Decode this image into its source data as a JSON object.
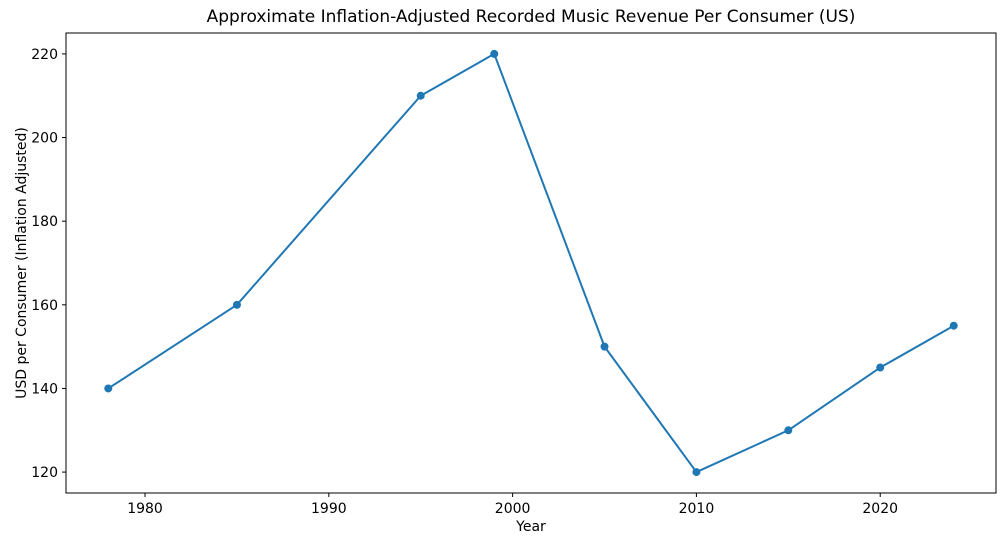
{
  "page": {
    "background_color": "#ffffff"
  },
  "chart_data": {
    "type": "line",
    "title": "Approximate Inflation-Adjusted Recorded Music Revenue Per Consumer (US)",
    "xlabel": "Year",
    "ylabel": "USD per Consumer (Inflation Adjusted)",
    "x": [
      1978,
      1985,
      1995,
      1999,
      2005,
      2010,
      2015,
      2020,
      2024
    ],
    "y": [
      140,
      160,
      210,
      220,
      150,
      120,
      130,
      145,
      155
    ],
    "xticks": [
      1980,
      1990,
      2000,
      2010,
      2020
    ],
    "yticks": [
      120,
      140,
      160,
      180,
      200,
      220
    ],
    "xlim": [
      1975.7,
      2026.3
    ],
    "ylim": [
      115,
      225
    ],
    "line_color": "#1f77b4",
    "marker": "circle",
    "grid": false,
    "legend_position": "none"
  }
}
